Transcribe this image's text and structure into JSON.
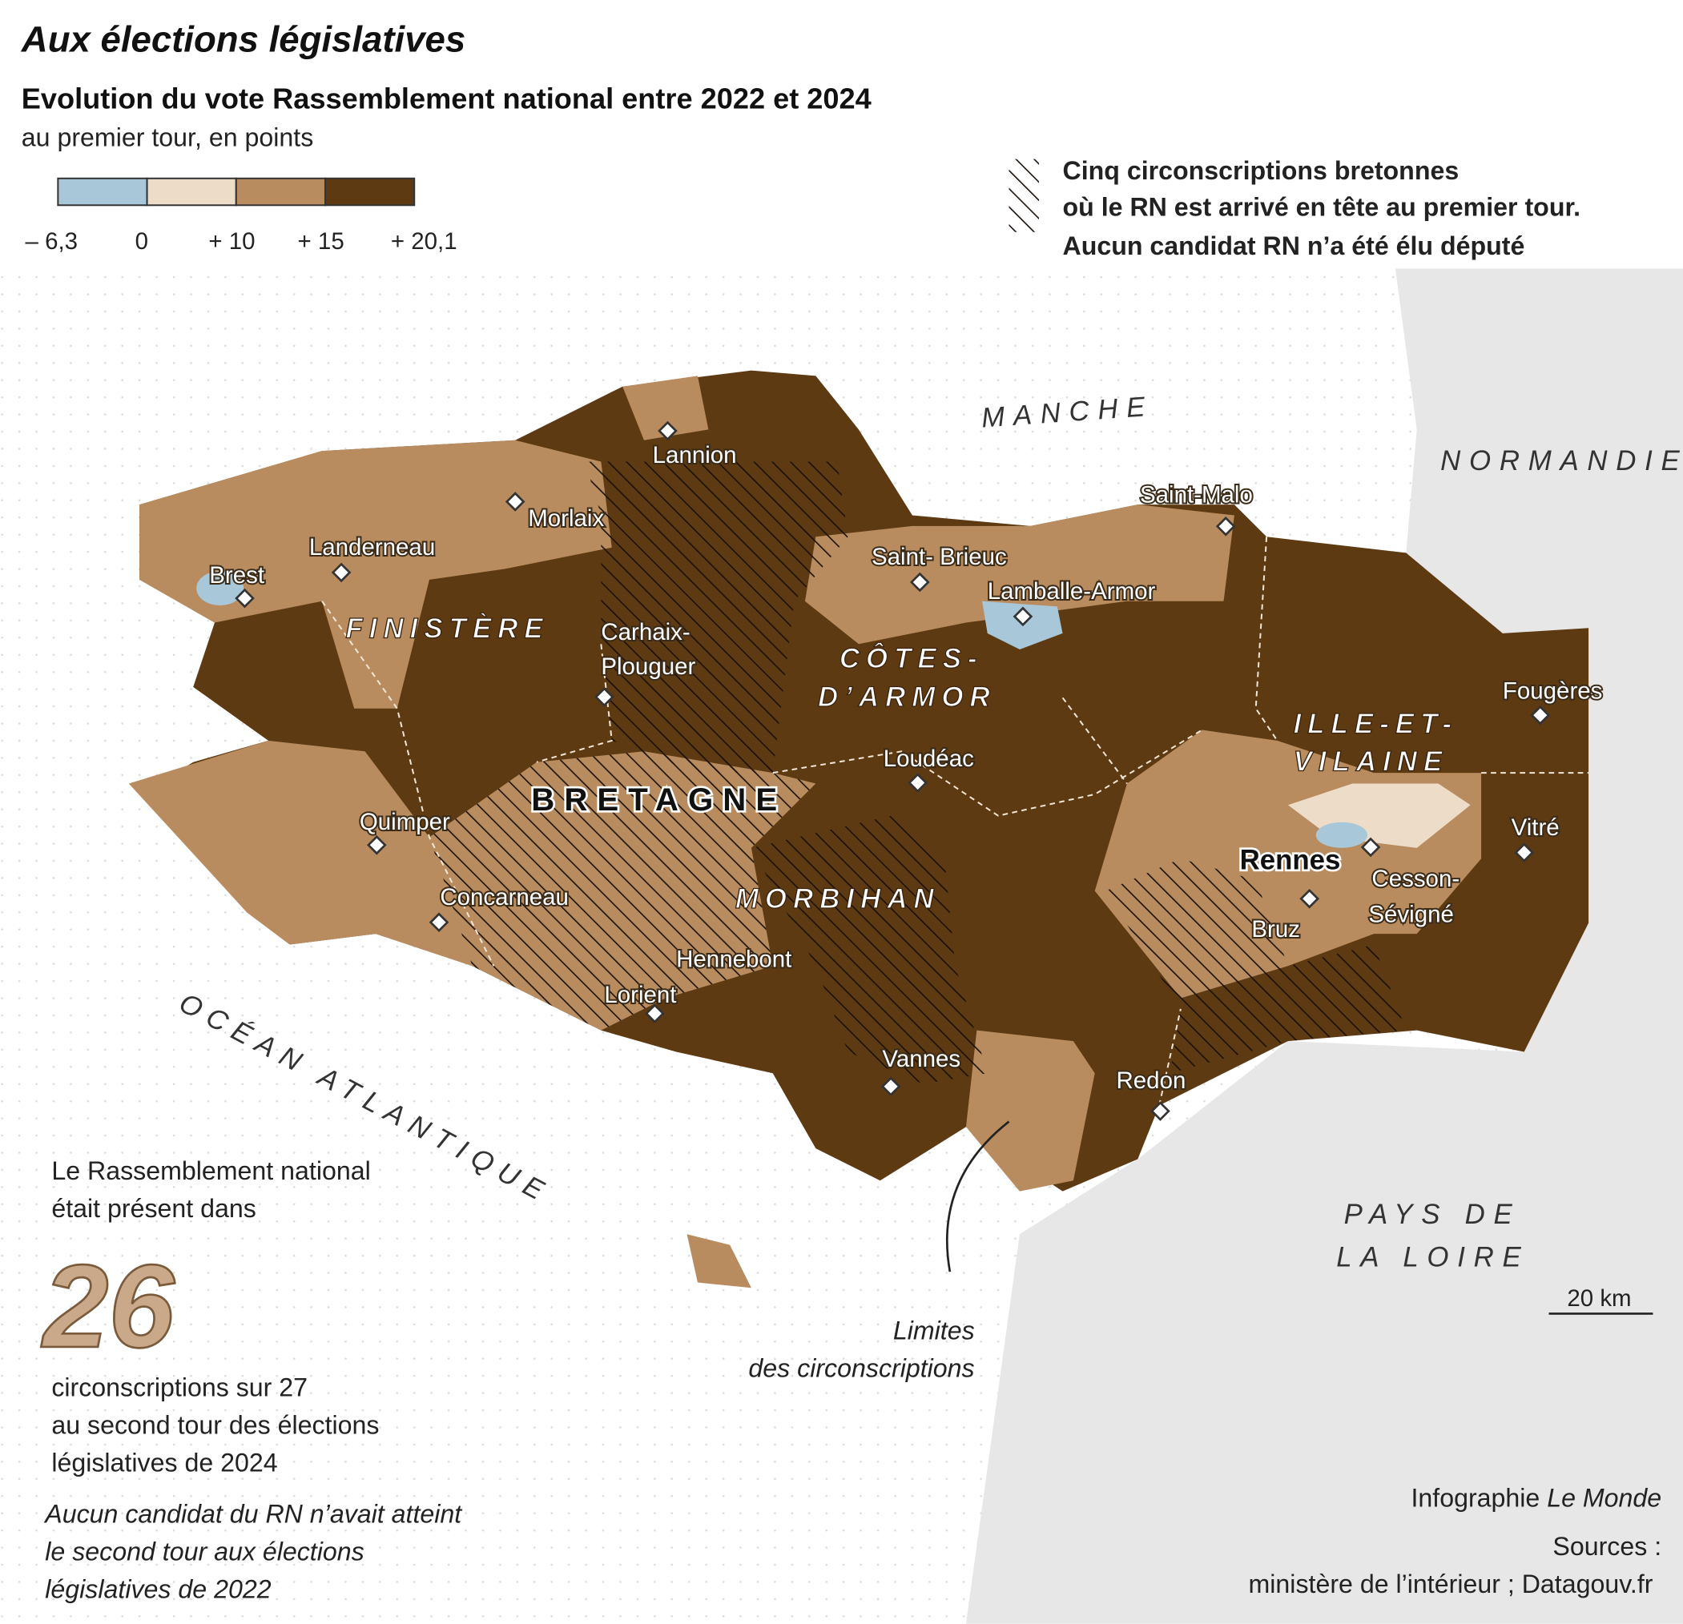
{
  "header": {
    "title": "Aux élections législatives",
    "subtitle": "Evolution du vote Rassemblement national entre 2022 et 2024",
    "unit": "au premier tour, en points"
  },
  "legend": {
    "colors": [
      "#a8c7d8",
      "#ecdcc8",
      "#b88c5e",
      "#5e3a12"
    ],
    "labels": [
      "– 6,3",
      "0",
      "+ 10",
      "+ 15",
      "+ 20,1"
    ],
    "hatch_lines": [
      "Cinq circonscriptions bretonnes",
      "où le RN est arrivé en tête au premier tour.",
      "Aucun candidat RN n’a été élu député"
    ]
  },
  "map": {
    "seas": [
      "MANCHE",
      "OCÉAN ATLANTIQUE"
    ],
    "neighbors": [
      "NORMANDIE",
      "PAYS DE",
      "LA LOIRE"
    ],
    "region": "BRETAGNE",
    "departments": [
      "FINISTÈRE",
      "CÔTES-",
      "D’ARMOR",
      "MORBIHAN",
      "ILLE-ET-",
      "VILAINE"
    ],
    "places": [
      "Lannion",
      "Morlaix",
      "Landerneau",
      "Brest",
      "Carhaix-",
      "Plouguer",
      "Quimper",
      "Concarneau",
      "Lorient",
      "Hennebont",
      "Vannes",
      "Loudéac",
      "Saint- Brieuc",
      "Lamballe-Armor",
      "Saint-Malo",
      "Fougères",
      "Vitré",
      "Rennes",
      "Cesson-",
      "Sévigné",
      "Bruz",
      "Redon"
    ],
    "boundary_note": [
      "Limites",
      "des circonscriptions"
    ],
    "scale": "20 km"
  },
  "annotation": {
    "intro": [
      "Le Rassemblement national",
      "était présent dans"
    ],
    "number": "26",
    "outro": [
      "circonscriptions sur 27",
      "au second tour des élections",
      "législatives de 2024"
    ],
    "note": [
      "Aucun candidat du RN n’avait atteint",
      "le second tour aux élections",
      "législatives de 2022"
    ]
  },
  "footer": {
    "credit": "Infographie ",
    "credit_source": "Le Monde",
    "sources_label": "Sources :",
    "sources": "ministère de l’intérieur ; Datagouv.fr"
  }
}
